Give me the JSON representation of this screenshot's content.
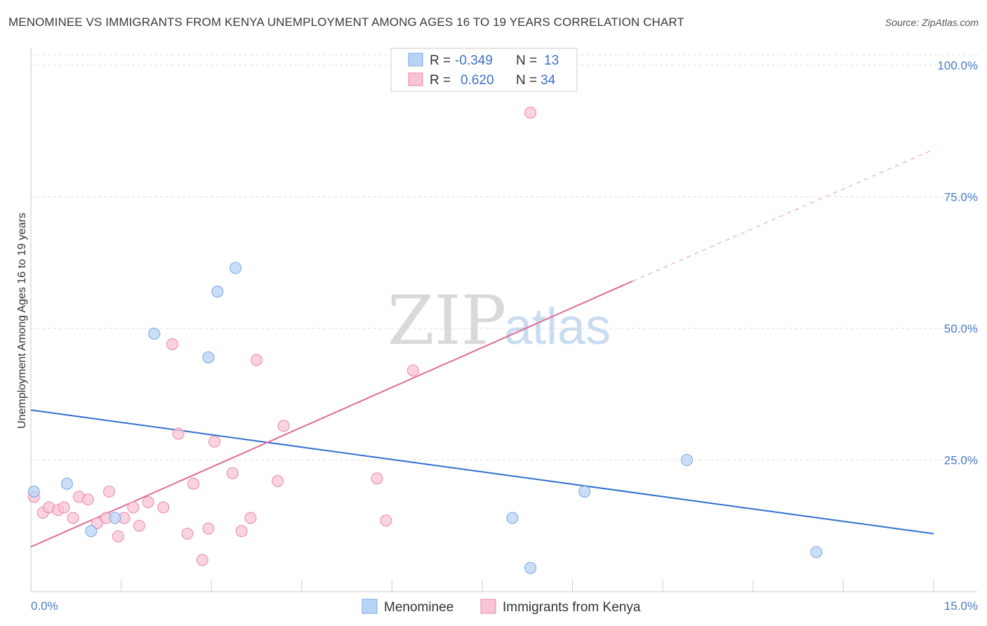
{
  "title": "MENOMINEE VS IMMIGRANTS FROM KENYA UNEMPLOYMENT AMONG AGES 16 TO 19 YEARS CORRELATION CHART",
  "source": "Source: ZipAtlas.com",
  "watermark": {
    "zip": "ZIP",
    "atlas": "atlas"
  },
  "colors": {
    "menominee_fill": "#b9d3f5",
    "menominee_stroke": "#7aa7e0",
    "menominee_line": "#2f6fcf",
    "kenya_fill": "#f8c3d5",
    "kenya_stroke": "#e88aaa",
    "kenya_line": "#e06b95",
    "grid": "#dddddd",
    "axis_label": "#4a7cc8"
  },
  "legend_box": {
    "rows": [
      {
        "r_label": "R =",
        "r_value": "-0.349",
        "n_label": "N =",
        "n_value": "13"
      },
      {
        "r_label": "R =",
        "r_value": "0.620",
        "n_label": "N =",
        "n_value": "34"
      }
    ]
  },
  "chart_data": {
    "type": "scatter",
    "title": "MENOMINEE VS IMMIGRANTS FROM KENYA UNEMPLOYMENT AMONG AGES 16 TO 19 YEARS CORRELATION CHART",
    "xlabel": "",
    "ylabel": "Unemployment Among Ages 16 to 19 years",
    "xlim": [
      0,
      15
    ],
    "ylim": [
      0,
      102
    ],
    "x_tick_labels": [
      "0.0%",
      "15.0%"
    ],
    "y_ticks": [
      25,
      50,
      75,
      100
    ],
    "y_tick_labels": [
      "25.0%",
      "50.0%",
      "75.0%",
      "100.0%"
    ],
    "grid": true,
    "legend_placement": "bottom-center",
    "series": [
      {
        "name": "Menominee",
        "r": -0.349,
        "n": 13,
        "points": [
          [
            0.05,
            19.0
          ],
          [
            0.6,
            20.5
          ],
          [
            1.0,
            11.5
          ],
          [
            1.4,
            14.0
          ],
          [
            2.05,
            49.0
          ],
          [
            2.95,
            44.5
          ],
          [
            3.1,
            57.0
          ],
          [
            3.4,
            61.5
          ],
          [
            8.0,
            14.0
          ],
          [
            8.3,
            4.5
          ],
          [
            9.2,
            19.0
          ],
          [
            10.9,
            25.0
          ],
          [
            13.05,
            7.5
          ]
        ],
        "trend": {
          "x": [
            0,
            15
          ],
          "y": [
            34.5,
            11.0
          ]
        }
      },
      {
        "name": "Immigrants from Kenya",
        "r": 0.62,
        "n": 34,
        "points": [
          [
            0.05,
            18.0
          ],
          [
            0.2,
            15.0
          ],
          [
            0.3,
            16.0
          ],
          [
            0.45,
            15.5
          ],
          [
            0.55,
            16.0
          ],
          [
            0.7,
            14.0
          ],
          [
            0.8,
            18.0
          ],
          [
            0.95,
            17.5
          ],
          [
            1.1,
            13.0
          ],
          [
            1.25,
            14.0
          ],
          [
            1.3,
            19.0
          ],
          [
            1.45,
            10.5
          ],
          [
            1.55,
            14.0
          ],
          [
            1.7,
            16.0
          ],
          [
            1.8,
            12.5
          ],
          [
            1.95,
            17.0
          ],
          [
            2.2,
            16.0
          ],
          [
            2.35,
            47.0
          ],
          [
            2.45,
            30.0
          ],
          [
            2.6,
            11.0
          ],
          [
            2.7,
            20.5
          ],
          [
            2.85,
            6.0
          ],
          [
            2.95,
            12.0
          ],
          [
            3.05,
            28.5
          ],
          [
            3.35,
            22.5
          ],
          [
            3.5,
            11.5
          ],
          [
            3.65,
            14.0
          ],
          [
            3.75,
            44.0
          ],
          [
            4.1,
            21.0
          ],
          [
            4.2,
            31.5
          ],
          [
            5.75,
            21.5
          ],
          [
            5.9,
            13.5
          ],
          [
            6.35,
            42.0
          ],
          [
            8.3,
            91.0
          ]
        ],
        "trend": {
          "x": [
            0,
            10.0
          ],
          "y": [
            8.5,
            59.0
          ]
        },
        "trend_dashed": {
          "x": [
            10.0,
            15.0
          ],
          "y": [
            59.0,
            84.0
          ]
        }
      }
    ]
  }
}
